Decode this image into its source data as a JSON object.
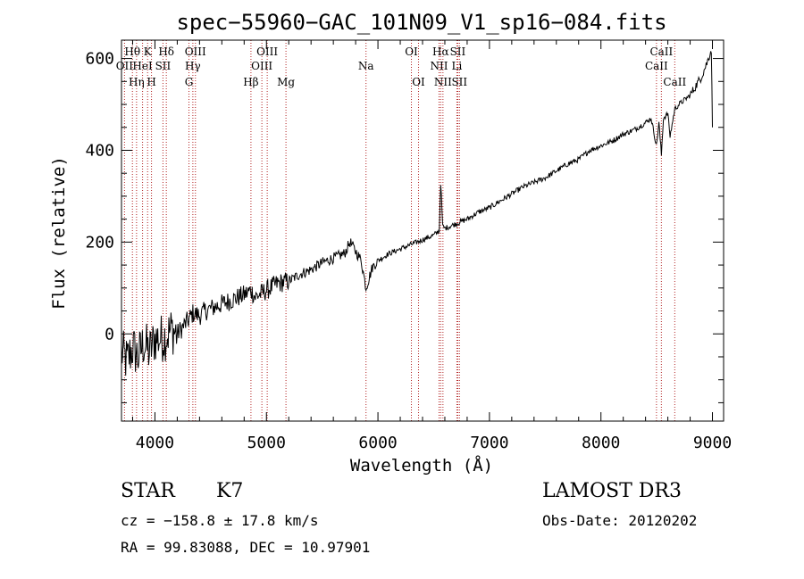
{
  "chart_data": {
    "type": "line",
    "title": "spec−55960−GAC_101N09_V1_sp16−084.fits",
    "xlabel": "Wavelength (Å)",
    "ylabel": "Flux (relative)",
    "xlim": [
      3700,
      9100
    ],
    "ylim": [
      -190,
      640
    ],
    "xticks": [
      4000,
      5000,
      6000,
      7000,
      8000,
      9000
    ],
    "yticks": [
      0,
      200,
      400,
      600
    ],
    "series": [
      {
        "name": "spectrum",
        "x": [
          3700,
          3750,
          3800,
          3850,
          3900,
          3950,
          4000,
          4050,
          4100,
          4150,
          4200,
          4250,
          4300,
          4340,
          4400,
          4450,
          4500,
          4600,
          4700,
          4800,
          4861,
          4900,
          5000,
          5100,
          5200,
          5300,
          5400,
          5500,
          5600,
          5700,
          5750,
          5800,
          5850,
          5893,
          5950,
          6000,
          6100,
          6200,
          6300,
          6400,
          6500,
          6550,
          6563,
          6580,
          6600,
          6700,
          6800,
          6900,
          7000,
          7100,
          7200,
          7300,
          7400,
          7500,
          7600,
          7700,
          7800,
          7900,
          8000,
          8100,
          8200,
          8300,
          8400,
          8450,
          8498,
          8520,
          8542,
          8560,
          8600,
          8620,
          8662,
          8700,
          8800,
          8900,
          8950,
          8990,
          9000
        ],
        "y": [
          -40,
          -60,
          -30,
          -50,
          -20,
          -40,
          -10,
          -10,
          -5,
          10,
          0,
          15,
          30,
          45,
          40,
          50,
          55,
          65,
          75,
          85,
          95,
          80,
          95,
          110,
          115,
          130,
          140,
          155,
          165,
          175,
          200,
          180,
          160,
          100,
          145,
          160,
          175,
          185,
          195,
          205,
          215,
          225,
          330,
          235,
          230,
          240,
          250,
          265,
          275,
          290,
          305,
          320,
          330,
          340,
          355,
          370,
          380,
          400,
          410,
          420,
          435,
          445,
          460,
          470,
          410,
          460,
          390,
          470,
          480,
          430,
          490,
          500,
          520,
          560,
          590,
          620,
          450
        ]
      }
    ],
    "lines": [
      {
        "name": "O II",
        "wavelength": 3727,
        "label": "OII",
        "row": 2
      },
      {
        "name": "H theta",
        "wavelength": 3798,
        "label": "Hθ",
        "row": 1
      },
      {
        "name": "He I",
        "wavelength": 3889,
        "label": "HeI",
        "row": 2
      },
      {
        "name": "H eta",
        "wavelength": 3835,
        "label": "Hη",
        "row": 3
      },
      {
        "name": "Ca K",
        "wavelength": 3934,
        "label": "K",
        "row": 1
      },
      {
        "name": "Ca H",
        "wavelength": 3969,
        "label": "H",
        "row": 3
      },
      {
        "name": "S II",
        "wavelength": 4072,
        "label": "SII",
        "row": 2
      },
      {
        "name": "H delta",
        "wavelength": 4102,
        "label": "Hδ",
        "row": 1
      },
      {
        "name": "O III",
        "wavelength": 4363,
        "label": "OIII",
        "row": 1
      },
      {
        "name": "H gamma",
        "wavelength": 4340,
        "label": "Hγ",
        "row": 2
      },
      {
        "name": "G band",
        "wavelength": 4305,
        "label": "G",
        "row": 3
      },
      {
        "name": "H beta",
        "wavelength": 4861,
        "label": "Hβ",
        "row": 3
      },
      {
        "name": "O III 4959",
        "wavelength": 4959,
        "label": "OIII",
        "row": 2
      },
      {
        "name": "O III 5007",
        "wavelength": 5007,
        "label": "OIII",
        "row": 1
      },
      {
        "name": "Mg",
        "wavelength": 5175,
        "label": "Mg",
        "row": 3
      },
      {
        "name": "Na",
        "wavelength": 5893,
        "label": "Na",
        "row": 2
      },
      {
        "name": "O I 6300",
        "wavelength": 6300,
        "label": "OI",
        "row": 1
      },
      {
        "name": "O I 6364",
        "wavelength": 6364,
        "label": "OI",
        "row": 3
      },
      {
        "name": "H alpha",
        "wavelength": 6563,
        "label": "Hα",
        "row": 1
      },
      {
        "name": "N II 6548",
        "wavelength": 6548,
        "label": "NII",
        "row": 2
      },
      {
        "name": "N II 6583",
        "wavelength": 6583,
        "label": "NII",
        "row": 3
      },
      {
        "name": "S II 6716",
        "wavelength": 6716,
        "label": "SII",
        "row": 1
      },
      {
        "name": "Li",
        "wavelength": 6708,
        "label": "Li",
        "row": 2
      },
      {
        "name": "S II 6731",
        "wavelength": 6731,
        "label": "SII",
        "row": 3
      },
      {
        "name": "Ca II 8498",
        "wavelength": 8498,
        "label": "CaII",
        "row": 2
      },
      {
        "name": "Ca II 8542",
        "wavelength": 8542,
        "label": "CaII",
        "row": 1
      },
      {
        "name": "Ca II 8662",
        "wavelength": 8662,
        "label": "CaII",
        "row": 3
      }
    ],
    "colors": {
      "spectrum": "#000000",
      "line_markers": "#b22222"
    }
  },
  "info": {
    "object_type": "STAR",
    "subclass": "K7",
    "survey": "LAMOST DR3",
    "cz": "cz = −158.8 ± 17.8 km/s",
    "obs_date": "Obs-Date: 20120202",
    "coords": "RA =  99.83088, DEC =  10.97901"
  }
}
